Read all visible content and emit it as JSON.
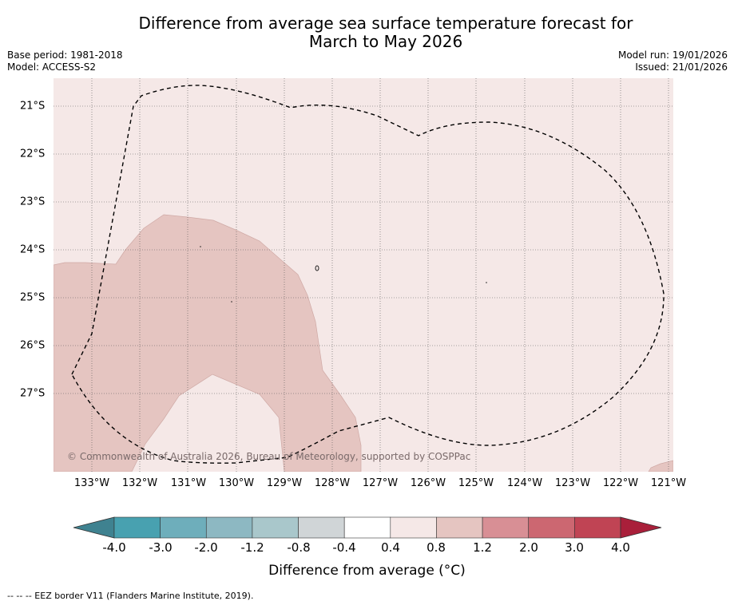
{
  "header": {
    "title_line1": "Difference from average sea surface temperature forecast for",
    "title_line2": "March to May 2026",
    "base_period": "Base period: 1981-2018",
    "model": "Model: ACCESS-S2",
    "model_run": "Model run: 19/01/2026",
    "issued": "Issued: 21/01/2026"
  },
  "map": {
    "lat_labels": [
      "21°S",
      "22°S",
      "23°S",
      "24°S",
      "25°S",
      "26°S",
      "27°S"
    ],
    "lon_labels": [
      "133°W",
      "132°W",
      "131°W",
      "130°W",
      "129°W",
      "128°W",
      "127°W",
      "126°W",
      "125°W",
      "124°W",
      "123°W",
      "122°W",
      "121°W"
    ],
    "copyright": "© Commonwealth of Australia 2026, Bureau of Meteorology, supported by COSPPac",
    "background_color": "#f5e8e7",
    "warm_anomaly_color": "#e5c5c1",
    "eez_border_style": "dashed"
  },
  "colorbar": {
    "ticks": [
      "-4.0",
      "-3.0",
      "-2.0",
      "-1.2",
      "-0.8",
      "-0.4",
      "0.4",
      "0.8",
      "1.2",
      "2.0",
      "3.0",
      "4.0"
    ],
    "colors": [
      "#3f8290",
      "#48a1b0",
      "#6eaebb",
      "#8db8c2",
      "#a9c7cb",
      "#d0d5d7",
      "#ffffff",
      "#f5e8e7",
      "#e5c5c1",
      "#d88f95",
      "#cc6771",
      "#c04454",
      "#a91f3a"
    ],
    "label": "Difference from average (°C)"
  },
  "footnote": "--  --  -- EEZ border V11 (Flanders Marine Institute, 2019)."
}
